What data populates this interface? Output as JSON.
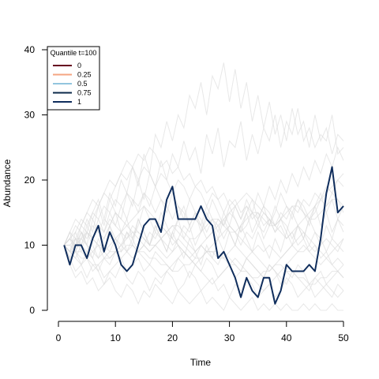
{
  "chart_data": {
    "type": "line",
    "xlabel": "Time",
    "ylabel": "Abundance",
    "xlim": [
      0,
      50
    ],
    "ylim": [
      0,
      40
    ],
    "xticks": [
      0,
      10,
      20,
      30,
      40,
      50
    ],
    "yticks": [
      0,
      10,
      20,
      30,
      40
    ],
    "grid": false,
    "legend": {
      "title": "Quantile t=100",
      "placement": "top-left",
      "entries": [
        {
          "label": "0",
          "color": "#67001f"
        },
        {
          "label": "0.25",
          "color": "#f4a582"
        },
        {
          "label": "0.5",
          "color": "#92c5de"
        },
        {
          "label": "0.75",
          "color": "#0b2a4a"
        },
        {
          "label": "1",
          "color": "#0f2d5c"
        }
      ]
    },
    "highlight_series": {
      "name": "1",
      "color": "#0f2d5c",
      "x": [
        1,
        2,
        3,
        4,
        5,
        6,
        7,
        8,
        9,
        10,
        11,
        12,
        13,
        14,
        15,
        16,
        17,
        18,
        19,
        20,
        21,
        22,
        23,
        24,
        25,
        26,
        27,
        28,
        29,
        30,
        31,
        32,
        33,
        34,
        35,
        36,
        37,
        38,
        39,
        40,
        41,
        42,
        43,
        44,
        45,
        46,
        47,
        48,
        49,
        50
      ],
      "y": [
        10,
        7,
        10,
        10,
        8,
        11,
        13,
        9,
        12,
        10,
        7,
        6,
        7,
        10,
        13,
        14,
        14,
        12,
        17,
        19,
        14,
        14,
        14,
        14,
        16,
        14,
        13,
        8,
        9,
        7,
        5,
        2,
        5,
        3,
        2,
        5,
        5,
        1,
        3,
        7,
        6,
        6,
        6,
        7,
        6,
        11,
        18,
        22,
        15,
        16
      ]
    },
    "background_series_color": "#d9d9d9",
    "background_series": [
      [
        10,
        11,
        10,
        13,
        12,
        15,
        17,
        14,
        18,
        16,
        20,
        18,
        22,
        19,
        24,
        21,
        27,
        25,
        29,
        26,
        30,
        28,
        33,
        31,
        35,
        30,
        36,
        34,
        38,
        32,
        37,
        31,
        35,
        29,
        33,
        28,
        32,
        27,
        30,
        26,
        31,
        27,
        29,
        25,
        30,
        26,
        28,
        24,
        27,
        26
      ],
      [
        10,
        12,
        9,
        11,
        14,
        12,
        16,
        13,
        17,
        15,
        14,
        18,
        16,
        20,
        17,
        21,
        19,
        23,
        20,
        24,
        22,
        26,
        23,
        25,
        21,
        27,
        24,
        28,
        22,
        26,
        25,
        29,
        23,
        27,
        24,
        28,
        26,
        30,
        25,
        29,
        27,
        31,
        26,
        28,
        25,
        27,
        26,
        30,
        24,
        25
      ],
      [
        10,
        9,
        12,
        10,
        13,
        11,
        14,
        12,
        15,
        13,
        16,
        14,
        17,
        15,
        18,
        16,
        19,
        17,
        15,
        18,
        16,
        14,
        17,
        15,
        13,
        16,
        14,
        12,
        15,
        13,
        16,
        14,
        17,
        15,
        18,
        16,
        19,
        17,
        20,
        18,
        21,
        19,
        22,
        20,
        23,
        21,
        24,
        22,
        25,
        23
      ],
      [
        10,
        11,
        13,
        12,
        10,
        14,
        12,
        11,
        13,
        15,
        12,
        14,
        11,
        13,
        16,
        14,
        12,
        15,
        13,
        11,
        14,
        16,
        13,
        15,
        12,
        14,
        17,
        15,
        13,
        16,
        14,
        12,
        15,
        17,
        14,
        16,
        13,
        15,
        18,
        16,
        14,
        17,
        15,
        13,
        16,
        18,
        15,
        17,
        14,
        16
      ],
      [
        10,
        8,
        11,
        9,
        12,
        10,
        8,
        11,
        13,
        10,
        12,
        9,
        11,
        14,
        12,
        10,
        13,
        11,
        9,
        12,
        14,
        11,
        13,
        10,
        12,
        15,
        13,
        11,
        14,
        12,
        10,
        13,
        15,
        12,
        14,
        11,
        13,
        16,
        14,
        12,
        15,
        13,
        11,
        14,
        16,
        13,
        15,
        12,
        14,
        13
      ],
      [
        10,
        9,
        8,
        10,
        9,
        11,
        10,
        8,
        9,
        11,
        10,
        12,
        11,
        9,
        10,
        12,
        11,
        13,
        12,
        10,
        11,
        13,
        12,
        14,
        13,
        11,
        12,
        14,
        13,
        15,
        14,
        12,
        13,
        15,
        14,
        16,
        15,
        13,
        14,
        16,
        15,
        17,
        16,
        14,
        15,
        17,
        16,
        18,
        17,
        15
      ],
      [
        10,
        10,
        9,
        9,
        8,
        9,
        10,
        9,
        8,
        9,
        10,
        9,
        8,
        9,
        10,
        9,
        10,
        9,
        8,
        9,
        10,
        9,
        8,
        9,
        10,
        9,
        9,
        9,
        8,
        9,
        10,
        9,
        8,
        9,
        10,
        9,
        10,
        9,
        8,
        9,
        10,
        9,
        9,
        10,
        9,
        10,
        11,
        10,
        9,
        11
      ],
      [
        10,
        9,
        8,
        7,
        9,
        8,
        6,
        8,
        7,
        9,
        8,
        6,
        7,
        8,
        6,
        7,
        9,
        8,
        7,
        6,
        8,
        7,
        5,
        7,
        6,
        8,
        7,
        5,
        6,
        7,
        5,
        6,
        8,
        7,
        6,
        5,
        7,
        6,
        4,
        6,
        5,
        7,
        6,
        4,
        5,
        6,
        4,
        5,
        6,
        5
      ],
      [
        10,
        8,
        6,
        7,
        5,
        7,
        6,
        4,
        6,
        5,
        7,
        5,
        4,
        6,
        5,
        3,
        5,
        4,
        6,
        5,
        3,
        4,
        6,
        5,
        3,
        4,
        5,
        3,
        4,
        2,
        4,
        3,
        5,
        4,
        2,
        3,
        4,
        2,
        3,
        5,
        4,
        2,
        3,
        4,
        2,
        3,
        4,
        3,
        2,
        3
      ],
      [
        10,
        7,
        5,
        6,
        4,
        5,
        3,
        4,
        5,
        3,
        2,
        4,
        3,
        1,
        3,
        2,
        4,
        3,
        2,
        1,
        3,
        2,
        1,
        2,
        3,
        1,
        2,
        1,
        0,
        2,
        1,
        0,
        1,
        2,
        0,
        1,
        0,
        1,
        0,
        1,
        0,
        0,
        1,
        0,
        1,
        0,
        0,
        1,
        0,
        0
      ],
      [
        10,
        11,
        12,
        14,
        13,
        15,
        14,
        16,
        15,
        17,
        16,
        18,
        17,
        16,
        18,
        17,
        15,
        17,
        16,
        14,
        16,
        15,
        13,
        15,
        14,
        12,
        14,
        13,
        11,
        13,
        12,
        10,
        12,
        11,
        13,
        12,
        14,
        13,
        15,
        14,
        16,
        15,
        17,
        16,
        18,
        17,
        19,
        18,
        20,
        19
      ],
      [
        10,
        12,
        14,
        13,
        15,
        17,
        16,
        18,
        20,
        19,
        21,
        23,
        22,
        20,
        22,
        21,
        19,
        21,
        20,
        18,
        20,
        19,
        17,
        19,
        18,
        16,
        18,
        17,
        15,
        17,
        16,
        14,
        16,
        15,
        13,
        15,
        14,
        12,
        14,
        13,
        11,
        13,
        12,
        10,
        12,
        11,
        9,
        11,
        10,
        9
      ],
      [
        10,
        9,
        11,
        10,
        12,
        11,
        13,
        12,
        14,
        13,
        12,
        11,
        13,
        12,
        11,
        10,
        12,
        11,
        10,
        9,
        11,
        10,
        9,
        8,
        10,
        9,
        8,
        7,
        9,
        8,
        7,
        6,
        8,
        7,
        6,
        5,
        7,
        6,
        5,
        4,
        6,
        5,
        4,
        3,
        5,
        4,
        3,
        2,
        4,
        3
      ],
      [
        10,
        8,
        9,
        7,
        8,
        6,
        7,
        5,
        6,
        7,
        8,
        9,
        10,
        9,
        8,
        7,
        6,
        5,
        6,
        7,
        8,
        9,
        8,
        7,
        6,
        5,
        4,
        5,
        6,
        7,
        8,
        7,
        6,
        5,
        4,
        3,
        4,
        5,
        6,
        7,
        8,
        9,
        10,
        9,
        8,
        7,
        8,
        9,
        10,
        11
      ],
      [
        10,
        11,
        10,
        12,
        11,
        13,
        12,
        14,
        13,
        15,
        14,
        13,
        12,
        11,
        10,
        9,
        10,
        11,
        12,
        13,
        12,
        11,
        10,
        9,
        10,
        11,
        12,
        13,
        14,
        15,
        16,
        17,
        18,
        17,
        16,
        15,
        14,
        13,
        12,
        11,
        12,
        13,
        14,
        15,
        16,
        17,
        18,
        19,
        20,
        21
      ],
      [
        10,
        9,
        10,
        11,
        10,
        9,
        8,
        9,
        10,
        11,
        12,
        13,
        14,
        15,
        16,
        15,
        14,
        13,
        12,
        11,
        10,
        9,
        8,
        7,
        8,
        9,
        10,
        11,
        12,
        13,
        12,
        11,
        10,
        9,
        8,
        7,
        6,
        7,
        8,
        9,
        10,
        11,
        12,
        11,
        10,
        9,
        8,
        7,
        6,
        7
      ],
      [
        10,
        10,
        11,
        11,
        12,
        11,
        10,
        10,
        9,
        9,
        10,
        11,
        12,
        12,
        11,
        10,
        10,
        11,
        12,
        13,
        13,
        12,
        11,
        11,
        12,
        13,
        14,
        14,
        13,
        12,
        12,
        13,
        14,
        15,
        15,
        14,
        13,
        13,
        14,
        15,
        16,
        16,
        15,
        14,
        14,
        15,
        16,
        17,
        17,
        16
      ],
      [
        10,
        9,
        9,
        8,
        8,
        7,
        7,
        8,
        8,
        9,
        9,
        10,
        10,
        9,
        9,
        8,
        8,
        7,
        7,
        6,
        6,
        7,
        7,
        8,
        8,
        9,
        9,
        8,
        8,
        7,
        7,
        6,
        6,
        5,
        5,
        6,
        6,
        7,
        7,
        6,
        6,
        5,
        5,
        4,
        4,
        5,
        5,
        6,
        6,
        5
      ],
      [
        10,
        11,
        9,
        12,
        10,
        8,
        11,
        9,
        13,
        11,
        9,
        12,
        10,
        14,
        12,
        10,
        13,
        11,
        9,
        12,
        10,
        8,
        11,
        9,
        7,
        10,
        8,
        11,
        9,
        12,
        10,
        13,
        11,
        9,
        12,
        10,
        8,
        11,
        9,
        12,
        10,
        13,
        11,
        14,
        12,
        10,
        13,
        11,
        14,
        12
      ],
      [
        10,
        12,
        11,
        13,
        15,
        14,
        16,
        18,
        17,
        19,
        21,
        20,
        22,
        24,
        23,
        25,
        24,
        22,
        23,
        21,
        22,
        20,
        21,
        19,
        20,
        18,
        19,
        17,
        18,
        16,
        17,
        15,
        16,
        14,
        15,
        13,
        14,
        12,
        13,
        11,
        12,
        10,
        11,
        9,
        10,
        8,
        9,
        7,
        8,
        7
      ]
    ]
  }
}
